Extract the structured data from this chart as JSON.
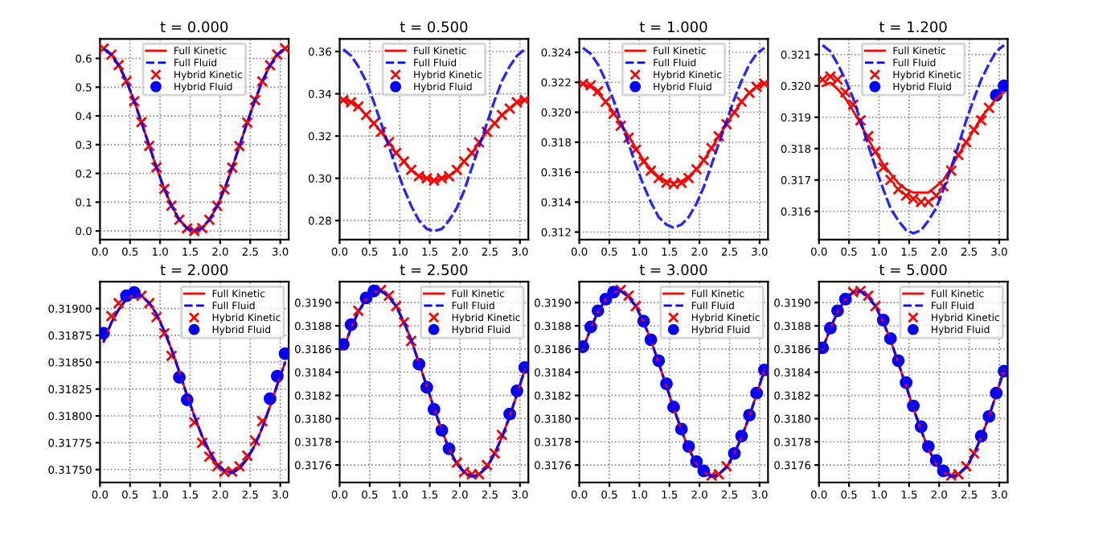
{
  "chart_data": [
    {
      "type": "line",
      "title": "t = 0.000",
      "legend": "top",
      "grid": true,
      "x": [
        0.06,
        0.19,
        0.31,
        0.44,
        0.57,
        0.69,
        0.82,
        0.94,
        1.07,
        1.19,
        1.32,
        1.45,
        1.57,
        1.7,
        1.82,
        1.95,
        2.07,
        2.2,
        2.32,
        2.45,
        2.58,
        2.7,
        2.83,
        2.95,
        3.08
      ],
      "xlim": [
        0,
        3.14
      ],
      "xticks": [
        {
          "value": 0,
          "label": "0.0"
        },
        {
          "value": 0.5,
          "label": "0.5"
        },
        {
          "value": 1,
          "label": "1.0"
        },
        {
          "value": 1.5,
          "label": "1.5"
        },
        {
          "value": 2,
          "label": "2.0"
        },
        {
          "value": 2.5,
          "label": "2.5"
        },
        {
          "value": 3,
          "label": "3.0"
        }
      ],
      "ylim": [
        -0.03,
        0.668
      ],
      "yticks": [
        {
          "value": 0,
          "label": "0.0"
        },
        0.1,
        0.2,
        0.3,
        0.4,
        0.5,
        0.6
      ],
      "series": [
        {
          "name": "Full Kinetic",
          "type": "line",
          "color": "#ff0000",
          "line_style": "solid",
          "values": [
            0.634,
            0.613,
            0.577,
            0.521,
            0.451,
            0.378,
            0.296,
            0.221,
            0.146,
            0.088,
            0.039,
            0.009,
            0.0,
            0.01,
            0.039,
            0.087,
            0.145,
            0.22,
            0.295,
            0.377,
            0.455,
            0.52,
            0.576,
            0.613,
            0.634
          ]
        },
        {
          "name": "Full Fluid",
          "type": "line",
          "color": "#0000ff",
          "line_style": "dashed",
          "values": [
            0.634,
            0.613,
            0.577,
            0.521,
            0.451,
            0.378,
            0.296,
            0.221,
            0.146,
            0.088,
            0.039,
            0.009,
            0.0,
            0.01,
            0.039,
            0.087,
            0.145,
            0.22,
            0.295,
            0.377,
            0.455,
            0.52,
            0.576,
            0.613,
            0.634
          ]
        },
        {
          "name": "Hybrid Kinetic",
          "type": "scatter",
          "marker": "cross",
          "color": "#ff0000",
          "values": [
            0.634,
            0.613,
            0.577,
            0.521,
            0.451,
            0.378,
            0.296,
            0.221,
            0.146,
            0.088,
            0.039,
            0.009,
            0.0,
            0.01,
            0.039,
            0.087,
            0.145,
            0.22,
            0.295,
            0.377,
            0.455,
            0.52,
            0.576,
            0.613,
            0.634
          ]
        },
        {
          "name": "Hybrid Fluid",
          "type": "scatter",
          "marker": "circle",
          "color": "#0000ff",
          "values": [
            null,
            null,
            null,
            null,
            null,
            null,
            null,
            null,
            null,
            null,
            null,
            null,
            null,
            null,
            null,
            null,
            null,
            null,
            null,
            null,
            null,
            null,
            null,
            null,
            null
          ]
        }
      ]
    },
    {
      "type": "line",
      "title": "t = 0.500",
      "legend": "top",
      "grid": true,
      "x": [
        0.06,
        0.19,
        0.31,
        0.44,
        0.57,
        0.69,
        0.82,
        0.94,
        1.07,
        1.19,
        1.32,
        1.45,
        1.57,
        1.7,
        1.82,
        1.95,
        2.07,
        2.2,
        2.32,
        2.45,
        2.58,
        2.7,
        2.83,
        2.95,
        3.08
      ],
      "xlim": [
        0,
        3.14
      ],
      "xticks": [
        {
          "value": 0,
          "label": "0.0"
        },
        {
          "value": 0.5,
          "label": "0.5"
        },
        {
          "value": 1,
          "label": "1.0"
        },
        {
          "value": 1.5,
          "label": "1.5"
        },
        {
          "value": 2,
          "label": "2.0"
        },
        {
          "value": 2.5,
          "label": "2.5"
        },
        {
          "value": 3,
          "label": "3.0"
        }
      ],
      "ylim": [
        0.271,
        0.366
      ],
      "yticks": [
        {
          "value": 0.28,
          "label": "0.28"
        },
        {
          "value": 0.3,
          "label": "0.30"
        },
        {
          "value": 0.32,
          "label": "0.32"
        },
        {
          "value": 0.34,
          "label": "0.34"
        },
        {
          "value": 0.36,
          "label": "0.36"
        }
      ],
      "series": [
        {
          "name": "Full Kinetic",
          "type": "line",
          "color": "#ff0000",
          "line_style": "solid",
          "values": [
            0.337,
            0.336,
            0.334,
            0.33,
            0.326,
            0.322,
            0.317,
            0.312,
            0.308,
            0.304,
            0.301,
            0.3,
            0.299,
            0.3,
            0.301,
            0.304,
            0.308,
            0.312,
            0.317,
            0.322,
            0.326,
            0.33,
            0.333,
            0.336,
            0.337
          ]
        },
        {
          "name": "Full Fluid",
          "type": "line",
          "color": "#0000ff",
          "line_style": "dashed",
          "values": [
            0.361,
            0.358,
            0.353,
            0.346,
            0.336,
            0.326,
            0.315,
            0.305,
            0.295,
            0.287,
            0.28,
            0.276,
            0.275,
            0.276,
            0.28,
            0.286,
            0.294,
            0.305,
            0.315,
            0.326,
            0.337,
            0.346,
            0.353,
            0.358,
            0.361
          ]
        },
        {
          "name": "Hybrid Kinetic",
          "type": "scatter",
          "marker": "cross",
          "color": "#ff0000",
          "values": [
            0.337,
            0.336,
            0.334,
            0.33,
            0.326,
            0.322,
            0.317,
            0.312,
            0.308,
            0.304,
            0.301,
            0.3,
            0.299,
            0.3,
            0.301,
            0.304,
            0.308,
            0.312,
            0.317,
            0.322,
            0.326,
            0.33,
            0.333,
            0.336,
            0.337
          ]
        },
        {
          "name": "Hybrid Fluid",
          "type": "scatter",
          "marker": "circle",
          "color": "#0000ff",
          "values": [
            null,
            null,
            null,
            null,
            null,
            null,
            null,
            null,
            null,
            null,
            null,
            null,
            null,
            null,
            null,
            null,
            null,
            null,
            null,
            null,
            null,
            null,
            null,
            null,
            null
          ]
        }
      ]
    },
    {
      "type": "line",
      "title": "t = 1.000",
      "legend": "top",
      "grid": true,
      "x": [
        0.06,
        0.19,
        0.31,
        0.44,
        0.57,
        0.69,
        0.82,
        0.94,
        1.07,
        1.19,
        1.32,
        1.45,
        1.57,
        1.7,
        1.82,
        1.95,
        2.07,
        2.2,
        2.32,
        2.45,
        2.58,
        2.7,
        2.83,
        2.95,
        3.08
      ],
      "xlim": [
        0,
        3.14
      ],
      "xticks": [
        {
          "value": 0,
          "label": "0.0"
        },
        {
          "value": 0.5,
          "label": "0.5"
        },
        {
          "value": 1,
          "label": "1.0"
        },
        {
          "value": 1.5,
          "label": "1.5"
        },
        {
          "value": 2,
          "label": "2.0"
        },
        {
          "value": 2.5,
          "label": "2.5"
        },
        {
          "value": 3,
          "label": "3.0"
        }
      ],
      "ylim": [
        0.3115,
        0.3249
      ],
      "yticks": [
        0.312,
        0.314,
        0.316,
        0.318,
        {
          "value": 0.32,
          "label": "0.320"
        },
        0.322,
        0.324
      ],
      "series": [
        {
          "name": "Full Kinetic",
          "type": "line",
          "color": "#ff0000",
          "line_style": "solid",
          "values": [
            0.3219,
            0.3217,
            0.3213,
            0.3207,
            0.32,
            0.3192,
            0.3184,
            0.3176,
            0.3168,
            0.3162,
            0.3157,
            0.3154,
            0.3153,
            0.3154,
            0.3157,
            0.3162,
            0.3168,
            0.3176,
            0.3184,
            0.3192,
            0.32,
            0.3207,
            0.3213,
            0.3217,
            0.3219
          ]
        },
        {
          "name": "Full Fluid",
          "type": "line",
          "color": "#0000ff",
          "line_style": "dashed",
          "values": [
            0.3243,
            0.3239,
            0.3232,
            0.3221,
            0.3208,
            0.3194,
            0.3179,
            0.3165,
            0.3151,
            0.314,
            0.313,
            0.3125,
            0.3123,
            0.3125,
            0.313,
            0.3139,
            0.315,
            0.3165,
            0.3179,
            0.3194,
            0.3209,
            0.3221,
            0.3232,
            0.3239,
            0.3243
          ]
        },
        {
          "name": "Hybrid Kinetic",
          "type": "scatter",
          "marker": "cross",
          "color": "#ff0000",
          "values": [
            0.3219,
            0.3218,
            0.3214,
            0.3207,
            0.3199,
            0.3191,
            0.3183,
            0.3175,
            0.3167,
            0.3161,
            0.3156,
            0.3153,
            0.3152,
            0.3153,
            0.3156,
            0.3162,
            0.3168,
            0.3176,
            0.3184,
            0.3192,
            0.32,
            0.3207,
            0.3213,
            0.3217,
            0.3219
          ]
        },
        {
          "name": "Hybrid Fluid",
          "type": "scatter",
          "marker": "circle",
          "color": "#0000ff",
          "values": [
            null,
            null,
            null,
            null,
            null,
            null,
            null,
            null,
            null,
            null,
            null,
            null,
            null,
            null,
            null,
            null,
            null,
            null,
            null,
            null,
            null,
            null,
            null,
            null,
            null
          ]
        }
      ]
    },
    {
      "type": "line",
      "title": "t = 1.200",
      "legend": "top",
      "grid": true,
      "x": [
        0.06,
        0.19,
        0.31,
        0.44,
        0.57,
        0.69,
        0.82,
        0.94,
        1.07,
        1.19,
        1.32,
        1.45,
        1.57,
        1.7,
        1.82,
        1.95,
        2.07,
        2.2,
        2.32,
        2.45,
        2.58,
        2.7,
        2.83,
        2.95,
        3.08
      ],
      "xlim": [
        0,
        3.14
      ],
      "xticks": [
        {
          "value": 0,
          "label": "0.0"
        },
        {
          "value": 0.5,
          "label": "0.5"
        },
        {
          "value": 1,
          "label": "1.0"
        },
        {
          "value": 1.5,
          "label": "1.5"
        },
        {
          "value": 2,
          "label": "2.0"
        },
        {
          "value": 2.5,
          "label": "2.5"
        },
        {
          "value": 3,
          "label": "3.0"
        }
      ],
      "ylim": [
        0.3151,
        0.3215
      ],
      "yticks": [
        0.316,
        0.317,
        0.318,
        0.319,
        {
          "value": 0.32,
          "label": "0.320"
        },
        0.321
      ],
      "series": [
        {
          "name": "Full Kinetic",
          "type": "line",
          "color": "#ff0000",
          "line_style": "solid",
          "values": [
            0.32,
            0.3201,
            0.3199,
            0.3196,
            0.3192,
            0.3188,
            0.3183,
            0.3179,
            0.3175,
            0.3172,
            0.3169,
            0.3167,
            0.3166,
            0.3166,
            0.3166,
            0.3168,
            0.317,
            0.3174,
            0.3178,
            0.3182,
            0.3186,
            0.319,
            0.3193,
            0.3196,
            0.3198
          ]
        },
        {
          "name": "Full Fluid",
          "type": "line",
          "color": "#0000ff",
          "line_style": "dashed",
          "values": [
            0.3213,
            0.3211,
            0.3207,
            0.3202,
            0.3196,
            0.3189,
            0.3181,
            0.3174,
            0.3167,
            0.3161,
            0.3157,
            0.3154,
            0.3153,
            0.3154,
            0.3157,
            0.3161,
            0.3167,
            0.3174,
            0.3181,
            0.3189,
            0.3196,
            0.3202,
            0.3207,
            0.3211,
            0.3213
          ]
        },
        {
          "name": "Hybrid Kinetic",
          "type": "scatter",
          "marker": "cross",
          "color": "#ff0000",
          "values": [
            0.3202,
            0.3203,
            0.3202,
            0.3198,
            0.3194,
            0.3189,
            0.3184,
            0.3179,
            0.3174,
            0.317,
            0.3167,
            0.3165,
            0.3164,
            0.3163,
            0.3163,
            0.3165,
            0.3168,
            0.3173,
            0.3178,
            0.3182,
            0.3186,
            0.3189,
            0.3193,
            null,
            null
          ]
        },
        {
          "name": "Hybrid Fluid",
          "type": "scatter",
          "marker": "circle",
          "color": "#0000ff",
          "values": [
            null,
            null,
            null,
            null,
            null,
            null,
            null,
            null,
            null,
            null,
            null,
            null,
            null,
            null,
            null,
            null,
            null,
            null,
            null,
            null,
            null,
            null,
            null,
            0.3197,
            0.32
          ]
        }
      ]
    },
    {
      "type": "line",
      "title": "t = 2.000",
      "legend": "top right",
      "grid": true,
      "x": [
        0.06,
        0.19,
        0.31,
        0.44,
        0.57,
        0.69,
        0.82,
        0.94,
        1.07,
        1.19,
        1.32,
        1.45,
        1.57,
        1.7,
        1.82,
        1.95,
        2.07,
        2.2,
        2.32,
        2.45,
        2.58,
        2.7,
        2.83,
        2.95,
        3.08
      ],
      "xlim": [
        0,
        3.14
      ],
      "xticks": [
        {
          "value": 0,
          "label": "0.0"
        },
        {
          "value": 0.5,
          "label": "0.5"
        },
        {
          "value": 1,
          "label": "1.0"
        },
        {
          "value": 1.5,
          "label": "1.5"
        },
        {
          "value": 2,
          "label": "2.0"
        },
        {
          "value": 2.5,
          "label": "2.5"
        },
        {
          "value": 3,
          "label": "3.0"
        }
      ],
      "ylim": [
        0.31738,
        0.31925
      ],
      "yticks": [
        {
          "value": 0.3175,
          "label": "0.31750"
        },
        0.31775,
        {
          "value": 0.318,
          "label": "0.31800"
        },
        0.31825,
        {
          "value": 0.3185,
          "label": "0.31850"
        },
        0.31875,
        {
          "value": 0.319,
          "label": "0.31900"
        }
      ],
      "series": [
        {
          "name": "Full Kinetic",
          "type": "line",
          "color": "#ff0000",
          "line_style": "solid",
          "values": [
            0.31869,
            0.31887,
            0.31899,
            0.31909,
            0.31913,
            0.31912,
            0.31905,
            0.31895,
            0.31879,
            0.31862,
            0.31841,
            0.31819,
            0.318,
            0.31781,
            0.31767,
            0.31755,
            0.31749,
            0.31747,
            0.31751,
            0.3176,
            0.31773,
            0.31789,
            0.31809,
            0.31829,
            0.3185
          ]
        },
        {
          "name": "Full Fluid",
          "type": "line",
          "color": "#0000ff",
          "line_style": "dashed",
          "values": [
            0.31869,
            0.31887,
            0.31899,
            0.31909,
            0.31913,
            0.31912,
            0.31905,
            0.31895,
            0.31879,
            0.31862,
            0.31841,
            0.31819,
            0.318,
            0.31781,
            0.31767,
            0.31755,
            0.31749,
            0.31747,
            0.31751,
            0.3176,
            0.31773,
            0.31789,
            0.31809,
            0.31829,
            0.3185
          ]
        },
        {
          "name": "Hybrid Kinetic",
          "type": "scatter",
          "marker": "cross",
          "color": "#ff0000",
          "values": [
            null,
            0.31893,
            0.31905,
            null,
            null,
            0.31912,
            0.31905,
            0.31892,
            0.31877,
            0.31856,
            null,
            null,
            0.31794,
            0.31775,
            0.31762,
            0.31753,
            0.31748,
            0.31748,
            0.31753,
            0.31763,
            0.31777,
            0.31795,
            null,
            null,
            null
          ]
        },
        {
          "name": "Hybrid Fluid",
          "type": "scatter",
          "marker": "circle",
          "color": "#0000ff",
          "values": [
            0.31877,
            null,
            null,
            0.31912,
            0.31915,
            null,
            null,
            null,
            null,
            null,
            0.31836,
            0.31815,
            null,
            null,
            null,
            null,
            null,
            null,
            null,
            null,
            null,
            null,
            0.31816,
            0.31837,
            0.31858
          ]
        }
      ]
    },
    {
      "type": "line",
      "title": "t = 2.500",
      "legend": "top right",
      "grid": true,
      "x": [
        0.06,
        0.19,
        0.31,
        0.44,
        0.57,
        0.69,
        0.82,
        0.94,
        1.07,
        1.19,
        1.32,
        1.45,
        1.57,
        1.7,
        1.82,
        1.95,
        2.07,
        2.2,
        2.32,
        2.45,
        2.58,
        2.7,
        2.83,
        2.95,
        3.08
      ],
      "xlim": [
        0,
        3.14
      ],
      "xticks": [
        {
          "value": 0,
          "label": "0.0"
        },
        {
          "value": 0.5,
          "label": "0.5"
        },
        {
          "value": 1,
          "label": "1.0"
        },
        {
          "value": 1.5,
          "label": "1.5"
        },
        {
          "value": 2,
          "label": "2.0"
        },
        {
          "value": 2.5,
          "label": "2.5"
        },
        {
          "value": 3,
          "label": "3.0"
        }
      ],
      "ylim": [
        0.31745,
        0.31918
      ],
      "yticks": [
        0.3176,
        0.3178,
        {
          "value": 0.318,
          "label": "0.3180"
        },
        0.3182,
        0.3184,
        0.3186,
        0.3188,
        {
          "value": 0.319,
          "label": "0.3190"
        }
      ],
      "series": [
        {
          "name": "Full Kinetic",
          "type": "line",
          "color": "#ff0000",
          "line_style": "solid",
          "values": [
            0.3186,
            0.31878,
            0.31892,
            0.31903,
            0.31909,
            0.3191,
            0.31905,
            0.31897,
            0.31883,
            0.31868,
            0.31848,
            0.31828,
            0.31809,
            0.3179,
            0.31774,
            0.31761,
            0.31754,
            0.3175,
            0.31752,
            0.31758,
            0.3177,
            0.31784,
            0.31802,
            0.31821,
            0.31842
          ]
        },
        {
          "name": "Full Fluid",
          "type": "line",
          "color": "#0000ff",
          "line_style": "dashed",
          "values": [
            0.3186,
            0.31878,
            0.31892,
            0.31903,
            0.31909,
            0.3191,
            0.31905,
            0.31897,
            0.31883,
            0.31868,
            0.31848,
            0.31828,
            0.31809,
            0.3179,
            0.31774,
            0.31761,
            0.31754,
            0.3175,
            0.31752,
            0.31758,
            0.3177,
            0.31784,
            0.31802,
            0.31821,
            0.31842
          ]
        },
        {
          "name": "Hybrid Kinetic",
          "type": "scatter",
          "marker": "cross",
          "color": "#ff0000",
          "values": [
            null,
            null,
            0.31893,
            null,
            null,
            0.31911,
            0.31906,
            0.31897,
            0.31883,
            0.31867,
            null,
            null,
            null,
            null,
            null,
            0.31762,
            0.31754,
            0.31752,
            0.31752,
            0.3176,
            0.3177,
            0.31786,
            null,
            null,
            null
          ]
        },
        {
          "name": "Hybrid Fluid",
          "type": "scatter",
          "marker": "circle",
          "color": "#0000ff",
          "values": [
            0.31864,
            0.31881,
            null,
            0.31904,
            0.3191,
            null,
            null,
            null,
            null,
            null,
            0.31847,
            0.31827,
            0.31808,
            0.3179,
            0.31774,
            null,
            null,
            null,
            null,
            null,
            null,
            null,
            0.31804,
            0.31824,
            0.31844
          ]
        }
      ]
    },
    {
      "type": "line",
      "title": "t = 3.000",
      "legend": "top right",
      "grid": true,
      "x": [
        0.06,
        0.19,
        0.31,
        0.44,
        0.57,
        0.69,
        0.82,
        0.94,
        1.07,
        1.19,
        1.32,
        1.45,
        1.57,
        1.7,
        1.82,
        1.95,
        2.07,
        2.2,
        2.32,
        2.45,
        2.58,
        2.7,
        2.83,
        2.95,
        3.08
      ],
      "xlim": [
        0,
        3.14
      ],
      "xticks": [
        {
          "value": 0,
          "label": "0.0"
        },
        {
          "value": 0.5,
          "label": "0.5"
        },
        {
          "value": 1,
          "label": "1.0"
        },
        {
          "value": 1.5,
          "label": "1.5"
        },
        {
          "value": 2,
          "label": "2.0"
        },
        {
          "value": 2.5,
          "label": "2.5"
        },
        {
          "value": 3,
          "label": "3.0"
        }
      ],
      "ylim": [
        0.31745,
        0.31918
      ],
      "yticks": [
        0.3176,
        0.3178,
        {
          "value": 0.318,
          "label": "0.3180"
        },
        0.3182,
        0.3184,
        0.3186,
        0.3188,
        {
          "value": 0.319,
          "label": "0.3190"
        }
      ],
      "series": [
        {
          "name": "Full Kinetic",
          "type": "line",
          "color": "#ff0000",
          "line_style": "solid",
          "values": [
            0.3186,
            0.31878,
            0.31892,
            0.31903,
            0.31909,
            0.3191,
            0.31905,
            0.31897,
            0.31883,
            0.31868,
            0.31848,
            0.31828,
            0.31809,
            0.3179,
            0.31774,
            0.31761,
            0.31754,
            0.3175,
            0.31752,
            0.31758,
            0.3177,
            0.31784,
            0.31802,
            0.31821,
            0.31842
          ]
        },
        {
          "name": "Full Fluid",
          "type": "line",
          "color": "#0000ff",
          "line_style": "dashed",
          "values": [
            0.3186,
            0.31878,
            0.31892,
            0.31903,
            0.31909,
            0.3191,
            0.31905,
            0.31897,
            0.31883,
            0.31868,
            0.31848,
            0.31828,
            0.31809,
            0.3179,
            0.31774,
            0.31761,
            0.31754,
            0.3175,
            0.31752,
            0.31758,
            0.3177,
            0.31784,
            0.31802,
            0.31821,
            0.31842
          ]
        },
        {
          "name": "Hybrid Kinetic",
          "type": "scatter",
          "marker": "cross",
          "color": "#ff0000",
          "values": [
            null,
            null,
            null,
            null,
            null,
            0.31911,
            0.31906,
            0.31897,
            null,
            null,
            null,
            null,
            null,
            null,
            null,
            null,
            null,
            0.31751,
            0.31752,
            0.31759,
            null,
            null,
            null,
            null,
            null
          ]
        },
        {
          "name": "Hybrid Fluid",
          "type": "scatter",
          "marker": "circle",
          "color": "#0000ff",
          "values": [
            0.31862,
            0.31879,
            0.31893,
            0.31903,
            0.31909,
            null,
            null,
            null,
            0.31884,
            0.31868,
            0.3185,
            0.3183,
            0.3181,
            0.31791,
            0.31776,
            0.31763,
            0.31755,
            null,
            null,
            null,
            0.3177,
            0.31785,
            0.31803,
            0.31822,
            0.31842
          ]
        }
      ]
    },
    {
      "type": "line",
      "title": "t = 5.000",
      "legend": "top right",
      "grid": true,
      "x": [
        0.06,
        0.19,
        0.31,
        0.44,
        0.57,
        0.69,
        0.82,
        0.94,
        1.07,
        1.19,
        1.32,
        1.45,
        1.57,
        1.7,
        1.82,
        1.95,
        2.07,
        2.2,
        2.32,
        2.45,
        2.58,
        2.7,
        2.83,
        2.95,
        3.08
      ],
      "xlim": [
        0,
        3.14
      ],
      "xticks": [
        {
          "value": 0,
          "label": "0.0"
        },
        {
          "value": 0.5,
          "label": "0.5"
        },
        {
          "value": 1,
          "label": "1.0"
        },
        {
          "value": 1.5,
          "label": "1.5"
        },
        {
          "value": 2,
          "label": "2.0"
        },
        {
          "value": 2.5,
          "label": "2.5"
        },
        {
          "value": 3,
          "label": "3.0"
        }
      ],
      "ylim": [
        0.31745,
        0.31918
      ],
      "yticks": [
        0.3176,
        0.3178,
        {
          "value": 0.318,
          "label": "0.3180"
        },
        0.3182,
        0.3184,
        0.3186,
        0.3188,
        {
          "value": 0.319,
          "label": "0.3190"
        }
      ],
      "series": [
        {
          "name": "Full Kinetic",
          "type": "line",
          "color": "#ff0000",
          "line_style": "solid",
          "values": [
            0.3186,
            0.31878,
            0.31892,
            0.31903,
            0.31909,
            0.3191,
            0.31905,
            0.31897,
            0.31883,
            0.31868,
            0.31848,
            0.31828,
            0.31809,
            0.3179,
            0.31774,
            0.31761,
            0.31754,
            0.3175,
            0.31752,
            0.31758,
            0.3177,
            0.31784,
            0.31802,
            0.31821,
            0.31842
          ]
        },
        {
          "name": "Full Fluid",
          "type": "line",
          "color": "#0000ff",
          "line_style": "dashed",
          "values": [
            0.3186,
            0.31878,
            0.31892,
            0.31903,
            0.31909,
            0.3191,
            0.31905,
            0.31897,
            0.31883,
            0.31868,
            0.31848,
            0.31828,
            0.31809,
            0.3179,
            0.31774,
            0.31761,
            0.31754,
            0.3175,
            0.31752,
            0.31758,
            0.3177,
            0.31784,
            0.31802,
            0.31821,
            0.31842
          ]
        },
        {
          "name": "Hybrid Kinetic",
          "type": "scatter",
          "marker": "cross",
          "color": "#ff0000",
          "values": [
            null,
            null,
            null,
            null,
            0.31909,
            0.3191,
            0.31906,
            0.31897,
            null,
            null,
            null,
            null,
            null,
            null,
            null,
            null,
            null,
            0.31751,
            0.31752,
            0.31759,
            0.3177,
            null,
            null,
            null,
            null
          ]
        },
        {
          "name": "Hybrid Fluid",
          "type": "scatter",
          "marker": "circle",
          "color": "#0000ff",
          "values": [
            0.31861,
            0.31878,
            0.31893,
            0.31903,
            null,
            null,
            null,
            null,
            0.31885,
            0.31869,
            0.3185,
            0.31831,
            0.31811,
            0.31793,
            0.31776,
            0.31764,
            0.31755,
            null,
            null,
            null,
            null,
            0.31785,
            0.31802,
            0.31822,
            0.31841
          ]
        }
      ]
    }
  ]
}
